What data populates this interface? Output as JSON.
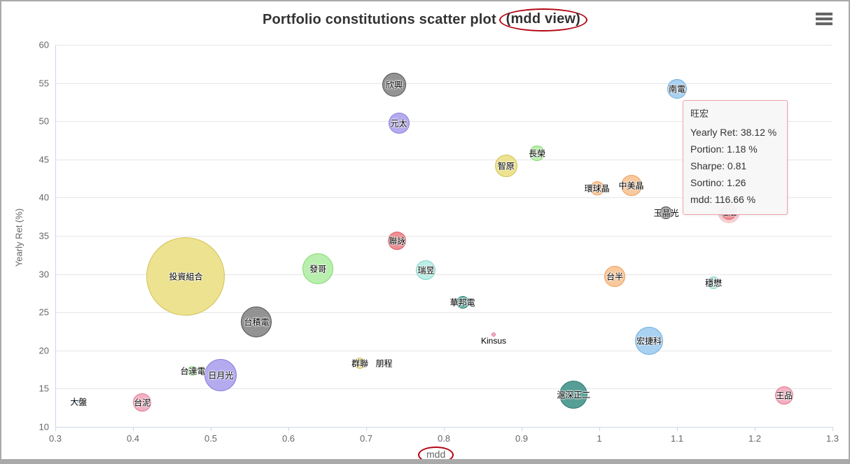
{
  "title": {
    "main": "Portfolio constitutions scatter plot",
    "annotation": "(mdd view)"
  },
  "menu": {
    "icon": "hamburger-menu-icon"
  },
  "annotation_color": "#b30613",
  "tooltip": {
    "title": "旺宏",
    "lines": [
      "Yearly Ret: 38.12 %",
      "Portion: 1.18 %",
      "Sharpe: 0.81",
      "Sortino: 1.26",
      "mdd: 116.66 %"
    ]
  },
  "chart_data": {
    "type": "scatter",
    "title": "Portfolio constitutions scatter plot (mdd view)",
    "xlabel": "mdd",
    "ylabel": "Yearly Ret (%)",
    "xlim": [
      0.3,
      1.3
    ],
    "ylim": [
      10,
      60
    ],
    "grid": "horizontal",
    "x_ticks": [
      0.3,
      0.4,
      0.5,
      0.6,
      0.7,
      0.8,
      0.9,
      1,
      1.1,
      1.2,
      1.3
    ],
    "x_tick_labels": [
      "0.3",
      "0.4",
      "0.5",
      "0.6",
      "0.7",
      "0.8",
      "0.9",
      "1",
      "1.1",
      "1.2",
      "1.3"
    ],
    "y_ticks": [
      10,
      15,
      20,
      25,
      30,
      35,
      40,
      45,
      50,
      55,
      60
    ],
    "y_tick_labels": [
      "10",
      "15",
      "20",
      "25",
      "30",
      "35",
      "40",
      "45",
      "50",
      "55",
      "60"
    ],
    "points": [
      {
        "label": "投資組合",
        "mdd": 0.468,
        "yearly_ret": 29.7,
        "r": 56,
        "fill": "#ece28f",
        "stroke": "#d4c25a"
      },
      {
        "label": "台積電",
        "mdd": 0.559,
        "yearly_ret": 23.7,
        "r": 22,
        "fill": "#939393",
        "stroke": "#4f4f4f"
      },
      {
        "label": "欣興",
        "mdd": 0.736,
        "yearly_ret": 54.8,
        "r": 17,
        "fill": "#939393",
        "stroke": "#4f4f4f"
      },
      {
        "label": "玉晶光",
        "mdd": 1.086,
        "yearly_ret": 38.0,
        "r": 9,
        "fill": "#939393",
        "stroke": "#4f4f4f"
      },
      {
        "label": "南電",
        "mdd": 1.1,
        "yearly_ret": 54.2,
        "r": 14,
        "fill": "#a9d1f1",
        "stroke": "#6fadde"
      },
      {
        "label": "宏捷科",
        "mdd": 1.064,
        "yearly_ret": 21.3,
        "r": 20,
        "fill": "#a9d1f1",
        "stroke": "#6fadde"
      },
      {
        "label": "元太",
        "mdd": 0.742,
        "yearly_ret": 49.7,
        "r": 15,
        "fill": "#b4abef",
        "stroke": "#897fe0"
      },
      {
        "label": "日月光",
        "mdd": 0.513,
        "yearly_ret": 16.8,
        "r": 23,
        "fill": "#b4abef",
        "stroke": "#897fe0"
      },
      {
        "label": "長榮",
        "mdd": 0.92,
        "yearly_ret": 45.8,
        "r": 11,
        "fill": "#b9efae",
        "stroke": "#7fd96c"
      },
      {
        "label": "發哥",
        "mdd": 0.638,
        "yearly_ret": 30.7,
        "r": 22,
        "fill": "#b9efae",
        "stroke": "#7fd96c"
      },
      {
        "label": "台達電",
        "mdd": 0.477,
        "yearly_ret": 17.3,
        "r": 7,
        "fill": "#b9efae",
        "stroke": "#7fd96c"
      },
      {
        "label": "智原",
        "mdd": 0.88,
        "yearly_ret": 44.2,
        "r": 16,
        "fill": "#ece28f",
        "stroke": "#d4c25a"
      },
      {
        "label": "群聯",
        "mdd": 0.692,
        "yearly_ret": 18.3,
        "r": 8,
        "fill": "#ece28f",
        "stroke": "#d4c25a"
      },
      {
        "label": "環球晶",
        "mdd": 0.997,
        "yearly_ret": 41.2,
        "r": 10,
        "fill": "#f8c99d",
        "stroke": "#f09d57"
      },
      {
        "label": "中美晶",
        "mdd": 1.041,
        "yearly_ret": 41.6,
        "r": 15,
        "fill": "#f8c99d",
        "stroke": "#f09d57"
      },
      {
        "label": "台半",
        "mdd": 1.02,
        "yearly_ret": 29.7,
        "r": 15,
        "fill": "#f8c99d",
        "stroke": "#f09d57"
      },
      {
        "label": "旺宏",
        "mdd": 1.1666,
        "yearly_ret": 38.12,
        "r": 11,
        "fill": "#ef8f93",
        "stroke": "#dd5a64",
        "halo": true,
        "halo_fill": "#f7ced2"
      },
      {
        "label": "聯詠",
        "mdd": 0.74,
        "yearly_ret": 34.4,
        "r": 13,
        "fill": "#ef8f93",
        "stroke": "#dd5a64"
      },
      {
        "label": "瑞昱",
        "mdd": 0.777,
        "yearly_ret": 30.5,
        "r": 14,
        "fill": "#bceee7",
        "stroke": "#7ed4c5"
      },
      {
        "label": "穩懋",
        "mdd": 1.147,
        "yearly_ret": 28.9,
        "r": 9,
        "fill": "#bceee7",
        "stroke": "#7ed4c5"
      },
      {
        "label": "華邦電",
        "mdd": 0.824,
        "yearly_ret": 26.3,
        "r": 9,
        "fill": "#5fb0a5",
        "stroke": "#338b7e"
      },
      {
        "label": "滬深正二",
        "mdd": 0.967,
        "yearly_ret": 14.2,
        "r": 20,
        "fill": "#579e97",
        "stroke": "#2b7a71"
      },
      {
        "label": "台泥",
        "mdd": 0.412,
        "yearly_ret": 13.2,
        "r": 13,
        "fill": "#f3b0c2",
        "stroke": "#e27795"
      },
      {
        "label": "王品",
        "mdd": 1.238,
        "yearly_ret": 14.1,
        "r": 13,
        "fill": "#f3b0c2",
        "stroke": "#e27795"
      },
      {
        "label": "Kinsus",
        "mdd": 0.864,
        "yearly_ret": 22.1,
        "r": 3,
        "fill": "#f3b0c2",
        "stroke": "#e27795",
        "label_dy": 9
      },
      {
        "label": "朋程",
        "mdd": 0.723,
        "yearly_ret": 18.3,
        "r": 0,
        "fill": "none",
        "stroke": "none"
      },
      {
        "label": "大盤",
        "mdd": 0.33,
        "yearly_ret": 13.4,
        "r": 2,
        "fill": "#9ec7e8",
        "stroke": "#7cb5ec",
        "label_dy": 1
      }
    ]
  }
}
